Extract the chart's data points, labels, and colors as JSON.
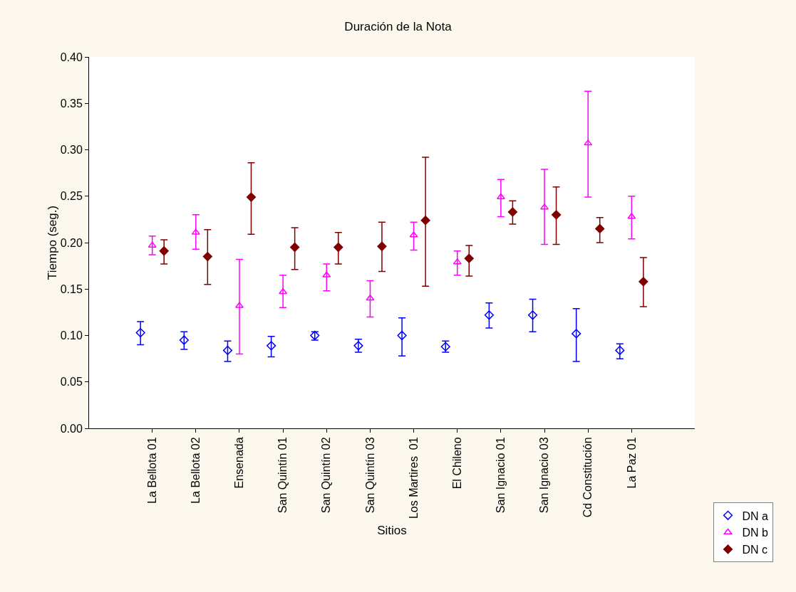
{
  "chart_data": {
    "type": "scatter",
    "title": "Duración de la Nota",
    "xlabel": "Sitios",
    "ylabel": "Tiempo (seg.)",
    "categories": [
      "La Bellota 01",
      "La Bellota 02",
      "Ensenada",
      "San Quintín 01",
      "San Quintín 02",
      "San Quintín 03",
      "Los Martires  01",
      "El Chileno",
      "San Ignacio 01",
      "San Ignacio 03",
      "Cd Constitución",
      "La Paz 01"
    ],
    "series": [
      {
        "name": "DN a",
        "color": "#0000ff",
        "marker": "diamond",
        "values": [
          0.103,
          0.095,
          0.084,
          0.089,
          0.1,
          0.089,
          0.1,
          0.088,
          0.122,
          0.122,
          0.102,
          0.084
        ],
        "errors": [
          [
            0.09,
            0.115
          ],
          [
            0.085,
            0.104
          ],
          [
            0.072,
            0.094
          ],
          [
            0.077,
            0.099
          ],
          [
            0.095,
            0.104
          ],
          [
            0.082,
            0.096
          ],
          [
            0.078,
            0.119
          ],
          [
            0.082,
            0.094
          ],
          [
            0.108,
            0.135
          ],
          [
            0.104,
            0.139
          ],
          [
            0.072,
            0.129
          ],
          [
            0.075,
            0.091
          ]
        ]
      },
      {
        "name": "DN b",
        "color": "#ff00ff",
        "marker": "triangle",
        "values": [
          0.197,
          0.211,
          0.132,
          0.147,
          0.165,
          0.14,
          0.208,
          0.179,
          0.249,
          0.238,
          0.307,
          0.228
        ],
        "errors": [
          [
            0.187,
            0.207
          ],
          [
            0.193,
            0.23
          ],
          [
            0.08,
            0.182
          ],
          [
            0.13,
            0.165
          ],
          [
            0.148,
            0.177
          ],
          [
            0.12,
            0.159
          ],
          [
            0.192,
            0.222
          ],
          [
            0.165,
            0.191
          ],
          [
            0.228,
            0.268
          ],
          [
            0.198,
            0.279
          ],
          [
            0.249,
            0.363
          ],
          [
            0.204,
            0.25
          ]
        ]
      },
      {
        "name": "DN c",
        "color": "#800000",
        "marker": "diamond",
        "values": [
          0.191,
          0.185,
          0.249,
          0.195,
          0.195,
          0.196,
          0.224,
          0.183,
          0.233,
          0.23,
          0.215,
          0.158
        ],
        "errors": [
          [
            0.177,
            0.203
          ],
          [
            0.155,
            0.214
          ],
          [
            0.209,
            0.286
          ],
          [
            0.171,
            0.216
          ],
          [
            0.177,
            0.211
          ],
          [
            0.169,
            0.222
          ],
          [
            0.153,
            0.292
          ],
          [
            0.164,
            0.197
          ],
          [
            0.22,
            0.245
          ],
          [
            0.198,
            0.26
          ],
          [
            0.2,
            0.227
          ],
          [
            0.131,
            0.184
          ]
        ]
      }
    ],
    "ylim": [
      0,
      0.4
    ],
    "yticks": [
      {
        "value": 0,
        "label": "0.00"
      },
      {
        "value": 0.05,
        "label": "0.05"
      },
      {
        "value": 0.1,
        "label": "0.10"
      },
      {
        "value": 0.15,
        "label": "0.15"
      },
      {
        "value": 0.2,
        "label": "0.20"
      },
      {
        "value": 0.25,
        "label": "0.25"
      },
      {
        "value": 0.3,
        "label": "0.30"
      },
      {
        "value": 0.35,
        "label": "0.35"
      },
      {
        "value": 0.4,
        "label": "0.40"
      }
    ],
    "grid": false,
    "legend": "bottom right"
  }
}
